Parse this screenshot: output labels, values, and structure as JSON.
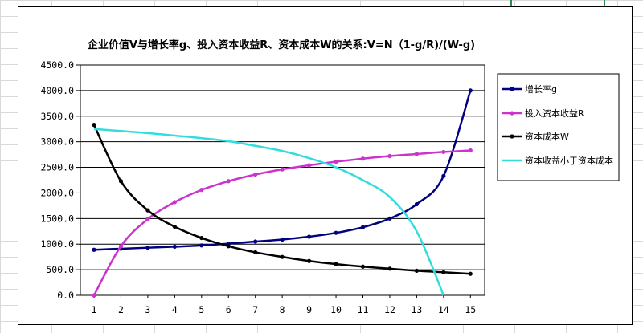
{
  "chart_data": {
    "type": "line",
    "title": "企业价值V与增长率g、投入资本收益R、资本成本W的关系:V=N（1-g/R)/(W-g)",
    "xlabel": "",
    "ylabel": "",
    "categories": [
      "1",
      "2",
      "3",
      "4",
      "5",
      "6",
      "7",
      "8",
      "9",
      "10",
      "11",
      "12",
      "13",
      "14",
      "15"
    ],
    "ylim": [
      0,
      4500
    ],
    "yticks": [
      "0.0",
      "500.0",
      "1000.0",
      "1500.0",
      "2000.0",
      "2500.0",
      "3000.0",
      "3500.0",
      "4000.0",
      "4500.0"
    ],
    "grid": true,
    "legend_position": "right",
    "series": [
      {
        "name": "增长率g",
        "color": "#000080",
        "marker": true,
        "values": [
          890,
          910,
          930,
          950,
          975,
          1010,
          1050,
          1090,
          1145,
          1220,
          1330,
          1500,
          1780,
          2330,
          4000
        ]
      },
      {
        "name": "投入资本收益R",
        "color": "#cc33cc",
        "marker": true,
        "values": [
          0,
          960,
          1490,
          1820,
          2060,
          2230,
          2360,
          2460,
          2540,
          2610,
          2670,
          2720,
          2760,
          2800,
          2830
        ]
      },
      {
        "name": "资本成本W",
        "color": "#000000",
        "marker": true,
        "values": [
          3330,
          2230,
          1660,
          1340,
          1120,
          960,
          840,
          750,
          670,
          610,
          560,
          520,
          480,
          450,
          420
        ]
      },
      {
        "name": "资本收益小于资本成本",
        "color": "#33dddd",
        "marker": false,
        "values": [
          3250,
          3210,
          3170,
          3120,
          3070,
          3010,
          2920,
          2820,
          2680,
          2500,
          2250,
          1920,
          1250,
          0,
          null
        ]
      }
    ]
  }
}
